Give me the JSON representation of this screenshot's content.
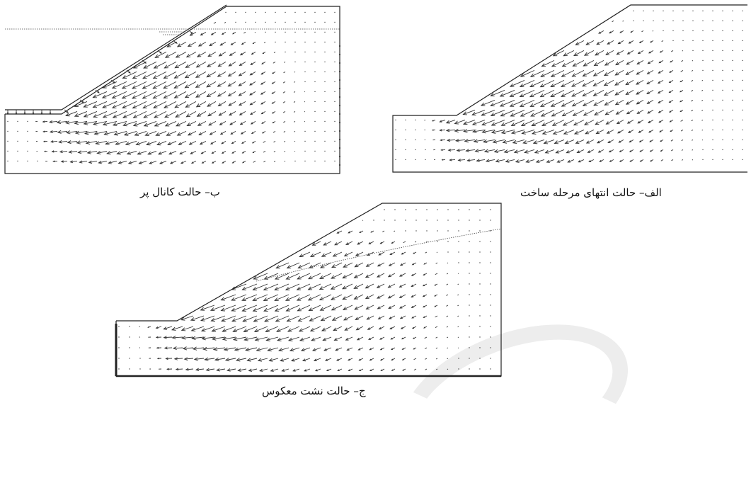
{
  "captions": {
    "panel_b": "ب– حالت کانال پر",
    "panel_a": "الف– حالت انتهای مرحله ساخت",
    "panel_c": "ج– حالت نشت معکوس"
  },
  "panels": {
    "panel_a": {
      "water_level": false,
      "boundary_pressure_arrows": false
    },
    "panel_b": {
      "water_level": true,
      "boundary_pressure_arrows": true
    },
    "panel_c": {
      "water_level": true,
      "boundary_pressure_arrows": false
    }
  },
  "colors": {
    "line": "#222222",
    "arrow": "#333333",
    "background": "#ffffff"
  }
}
